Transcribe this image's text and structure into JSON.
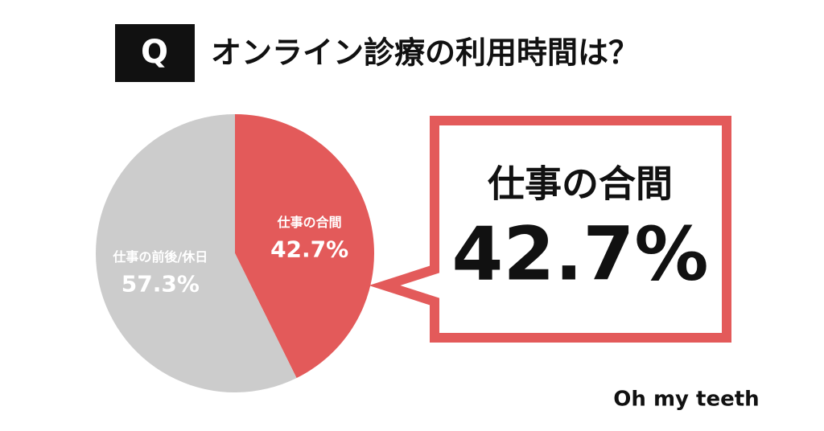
{
  "badge": "Q",
  "chart_data": {
    "type": "pie",
    "title": "オンライン診療の利用時間は？",
    "categories": [
      "仕事の合間",
      "仕事の前後/休日"
    ],
    "values": [
      42.7,
      57.3
    ],
    "value_labels": [
      "42.7%",
      "57.3%"
    ],
    "colors": [
      "#e35a5a",
      "#cccccc"
    ]
  },
  "brand": "Oh my teeth"
}
